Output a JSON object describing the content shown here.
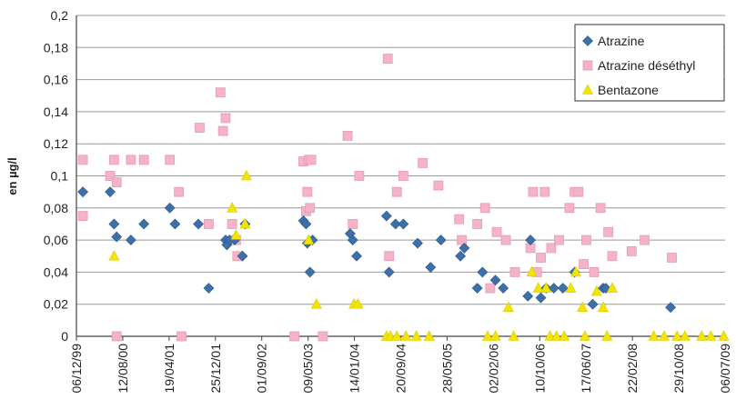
{
  "chart_data": {
    "type": "scatter",
    "ylabel": "en µg/l",
    "ylim": [
      0,
      0.2
    ],
    "ystep": 0.02,
    "y_ticks": [
      "0",
      "0,02",
      "0,04",
      "0,06",
      "0,08",
      "0,1",
      "0,12",
      "0,14",
      "0,16",
      "0,18",
      "0,2"
    ],
    "x_ticks": [
      "06/12/99",
      "12/08/00",
      "19/04/01",
      "25/12/01",
      "01/09/02",
      "09/05/03",
      "14/01/04",
      "20/09/04",
      "28/05/05",
      "02/02/06",
      "10/10/06",
      "17/06/07",
      "22/02/08",
      "29/10/08",
      "06/07/09"
    ],
    "xlim": [
      "1999-12-06",
      "2009-07-06"
    ],
    "grid": true,
    "legend_position": "top-right",
    "series": [
      {
        "name": "Atrazine",
        "color": "#3d6fa8",
        "marker": "diamond",
        "points": [
          [
            "2000-01-10",
            0.09
          ],
          [
            "2000-06-05",
            0.09
          ],
          [
            "2000-06-26",
            0.07
          ],
          [
            "2000-07-10",
            0.062
          ],
          [
            "2000-09-25",
            0.06
          ],
          [
            "2000-12-04",
            0.07
          ],
          [
            "2001-04-23",
            0.08
          ],
          [
            "2001-05-21",
            0.07
          ],
          [
            "2001-09-24",
            0.07
          ],
          [
            "2001-11-19",
            0.03
          ],
          [
            "2002-02-18",
            0.06
          ],
          [
            "2002-02-25",
            0.057
          ],
          [
            "2002-03-11",
            0.06
          ],
          [
            "2002-04-08",
            0.06
          ],
          [
            "2002-05-20",
            0.05
          ],
          [
            "2002-06-03",
            0.07
          ],
          [
            "2003-04-14",
            0.072
          ],
          [
            "2003-04-28",
            0.07
          ],
          [
            "2003-05-05",
            0.058
          ],
          [
            "2003-05-19",
            0.04
          ],
          [
            "2003-06-02",
            0.06
          ],
          [
            "2003-12-22",
            0.064
          ],
          [
            "2004-01-05",
            0.06
          ],
          [
            "2004-01-26",
            0.05
          ],
          [
            "2004-07-05",
            0.075
          ],
          [
            "2004-07-19",
            0.04
          ],
          [
            "2004-08-23",
            0.07
          ],
          [
            "2004-10-04",
            0.07
          ],
          [
            "2004-12-20",
            0.058
          ],
          [
            "2005-02-28",
            0.043
          ],
          [
            "2005-04-25",
            0.06
          ],
          [
            "2005-08-08",
            0.05
          ],
          [
            "2005-08-29",
            0.055
          ],
          [
            "2005-11-07",
            0.03
          ],
          [
            "2005-12-05",
            0.04
          ],
          [
            "2006-02-13",
            0.035
          ],
          [
            "2006-03-27",
            0.03
          ],
          [
            "2006-08-07",
            0.025
          ],
          [
            "2006-08-21",
            0.06
          ],
          [
            "2006-10-16",
            0.024
          ],
          [
            "2006-11-13",
            0.03
          ],
          [
            "2006-12-25",
            0.03
          ],
          [
            "2007-02-12",
            0.03
          ],
          [
            "2007-04-16",
            0.04
          ],
          [
            "2007-07-23",
            0.02
          ],
          [
            "2007-09-17",
            0.03
          ],
          [
            "2007-10-01",
            0.03
          ],
          [
            "2008-09-15",
            0.018
          ]
        ]
      },
      {
        "name": "Atrazine déséthyl",
        "color": "#f4b3c8",
        "marker": "square",
        "points": [
          [
            "2000-01-10",
            0.11
          ],
          [
            "2000-01-10",
            0.075
          ],
          [
            "2000-06-05",
            0.1
          ],
          [
            "2000-06-26",
            0.11
          ],
          [
            "2000-07-10",
            0.096
          ],
          [
            "2000-07-10",
            0.0
          ],
          [
            "2000-09-25",
            0.11
          ],
          [
            "2000-12-04",
            0.11
          ],
          [
            "2001-04-23",
            0.11
          ],
          [
            "2001-06-11",
            0.09
          ],
          [
            "2001-06-25",
            0.0
          ],
          [
            "2001-10-01",
            0.13
          ],
          [
            "2001-11-19",
            0.07
          ],
          [
            "2002-01-21",
            0.152
          ],
          [
            "2002-02-04",
            0.128
          ],
          [
            "2002-02-18",
            0.136
          ],
          [
            "2002-03-25",
            0.07
          ],
          [
            "2002-04-15",
            0.06
          ],
          [
            "2002-04-22",
            0.05
          ],
          [
            "2003-02-24",
            0.0
          ],
          [
            "2003-04-14",
            0.109
          ],
          [
            "2003-04-28",
            0.078
          ],
          [
            "2003-05-05",
            0.09
          ],
          [
            "2003-05-12",
            0.11
          ],
          [
            "2003-05-19",
            0.08
          ],
          [
            "2003-05-26",
            0.11
          ],
          [
            "2003-07-28",
            0.0
          ],
          [
            "2003-12-08",
            0.125
          ],
          [
            "2004-01-05",
            0.07
          ],
          [
            "2004-02-09",
            0.1
          ],
          [
            "2004-07-12",
            0.173
          ],
          [
            "2004-07-19",
            0.05
          ],
          [
            "2004-08-30",
            0.09
          ],
          [
            "2004-10-04",
            0.1
          ],
          [
            "2005-01-17",
            0.108
          ],
          [
            "2005-04-11",
            0.094
          ],
          [
            "2005-08-01",
            0.073
          ],
          [
            "2005-08-15",
            0.06
          ],
          [
            "2005-11-07",
            0.07
          ],
          [
            "2005-12-19",
            0.08
          ],
          [
            "2006-01-16",
            0.03
          ],
          [
            "2006-02-20",
            0.065
          ],
          [
            "2006-04-10",
            0.06
          ],
          [
            "2006-05-29",
            0.04
          ],
          [
            "2006-08-21",
            0.055
          ],
          [
            "2006-09-04",
            0.09
          ],
          [
            "2006-09-25",
            0.04
          ],
          [
            "2006-10-16",
            0.049
          ],
          [
            "2006-11-06",
            0.09
          ],
          [
            "2006-12-11",
            0.055
          ],
          [
            "2007-01-22",
            0.06
          ],
          [
            "2007-03-19",
            0.08
          ],
          [
            "2007-04-16",
            0.09
          ],
          [
            "2007-05-07",
            0.09
          ],
          [
            "2007-06-04",
            0.045
          ],
          [
            "2007-06-18",
            0.06
          ],
          [
            "2007-07-30",
            0.04
          ],
          [
            "2007-09-03",
            0.08
          ],
          [
            "2007-10-15",
            0.065
          ],
          [
            "2007-11-05",
            0.05
          ],
          [
            "2008-02-18",
            0.053
          ],
          [
            "2008-04-28",
            0.06
          ],
          [
            "2008-09-22",
            0.049
          ]
        ]
      },
      {
        "name": "Bentazone",
        "color": "#f3e500",
        "marker": "triangle",
        "points": [
          [
            "2000-06-26",
            0.05
          ],
          [
            "2002-03-25",
            0.08
          ],
          [
            "2002-04-15",
            0.063
          ],
          [
            "2002-06-03",
            0.07
          ],
          [
            "2002-06-10",
            0.1
          ],
          [
            "2003-05-12",
            0.06
          ],
          [
            "2003-06-23",
            0.02
          ],
          [
            "2004-01-12",
            0.02
          ],
          [
            "2004-02-02",
            0.02
          ],
          [
            "2004-07-05",
            0.0
          ],
          [
            "2004-07-26",
            0.0
          ],
          [
            "2004-08-30",
            0.0
          ],
          [
            "2004-10-18",
            0.0
          ],
          [
            "2004-12-13",
            0.0
          ],
          [
            "2005-02-21",
            0.0
          ],
          [
            "2006-01-02",
            0.0
          ],
          [
            "2006-02-13",
            0.0
          ],
          [
            "2006-04-24",
            0.018
          ],
          [
            "2006-05-22",
            0.0
          ],
          [
            "2006-08-28",
            0.04
          ],
          [
            "2006-10-02",
            0.03
          ],
          [
            "2006-11-13",
            0.03
          ],
          [
            "2006-12-04",
            0.0
          ],
          [
            "2007-01-08",
            0.0
          ],
          [
            "2007-02-19",
            0.0
          ],
          [
            "2007-03-26",
            0.03
          ],
          [
            "2007-04-23",
            0.04
          ],
          [
            "2007-05-28",
            0.018
          ],
          [
            "2007-06-11",
            0.0
          ],
          [
            "2007-08-13",
            0.028
          ],
          [
            "2007-09-17",
            0.018
          ],
          [
            "2007-10-08",
            0.0
          ],
          [
            "2007-11-05",
            0.03
          ],
          [
            "2008-06-16",
            0.0
          ],
          [
            "2008-08-11",
            0.0
          ],
          [
            "2008-10-20",
            0.0
          ],
          [
            "2008-12-01",
            0.0
          ],
          [
            "2009-03-02",
            0.0
          ],
          [
            "2009-04-20",
            0.0
          ],
          [
            "2009-06-29",
            0.0
          ]
        ]
      }
    ]
  }
}
